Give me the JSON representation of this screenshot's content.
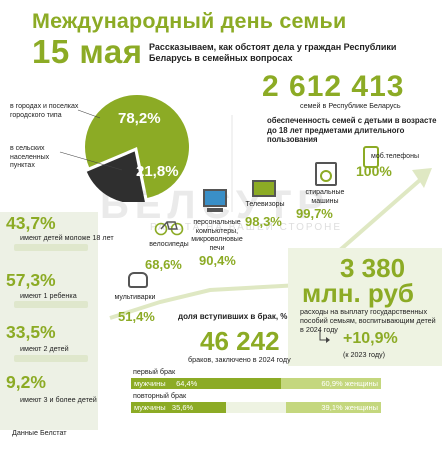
{
  "header": {
    "title": "Международный день семьи",
    "date": "15 мая",
    "subtitle": "Рассказываем, как обстоят дела у граждан Республики Беларусь в семейных вопросах"
  },
  "families": {
    "count": "2 612 413",
    "caption": "семей в Республике Беларусь"
  },
  "pie": {
    "urban_pct": "78,2%",
    "urban_label": "в городах и поселках городского типа",
    "rural_pct": "21,8%",
    "rural_label": "в сельских населенных пунктах",
    "urban_value": 78.2,
    "rural_value": 21.8
  },
  "watermark": {
    "text": "БЕЛСУТР",
    "sub": "РАБОТА НА ВАШЕЙ СТОРОНЕ"
  },
  "goods": {
    "heading": "обеспеченность семей с детьми в возрасте до 18 лет предметами длительного пользования",
    "items": [
      {
        "label": "моб.телефоны",
        "pct": "100%"
      },
      {
        "label": "стиральные машины",
        "pct": "99,7%"
      },
      {
        "label": "Телевизоры",
        "pct": "98,3%"
      },
      {
        "label": "персональные компьютеры, микроволновые печи",
        "pct": "90,4%"
      },
      {
        "label": "велосипеды",
        "pct": "68,6%"
      },
      {
        "label": "мультиварки",
        "pct": "51,4%"
      }
    ]
  },
  "children": [
    {
      "pct": "43,7%",
      "label": "имеют детей моложе 18 лет",
      "value": 43.7
    },
    {
      "pct": "57,3%",
      "label": "имеют 1 ребенка",
      "value": 57.3
    },
    {
      "pct": "33,5%",
      "label": "имеют 2 детей",
      "value": 33.5
    },
    {
      "pct": "9,2%",
      "label": "имеют 3 и более детей",
      "value": 9.2
    }
  ],
  "money": {
    "amount_line1": "3 380",
    "amount_line2": "млн. руб",
    "caption": "расходы на выплату государственных пособий семьям, воспитывающим детей в 2024 году",
    "growth": "+10,9%",
    "growth_caption": "(к 2023 году)"
  },
  "marriages": {
    "heading": "доля вступивших в брак, %",
    "count": "46 242",
    "caption": "браков, заключено в 2024 году",
    "rows": [
      {
        "label": "первый брак",
        "men_label": "мужчины",
        "men_pct": "64,4%",
        "women_label": "женщины",
        "women_pct": "60,9%",
        "men_value": 64.4,
        "women_value": 60.9
      },
      {
        "label": "повторный брак",
        "men_label": "мужчины",
        "men_pct": "35,6%",
        "women_label": "женщины",
        "women_pct": "39,1%",
        "men_value": 35.6,
        "women_value": 39.1
      }
    ]
  },
  "source": "Данные Белстат",
  "colors": {
    "accent": "#8cab25",
    "dark": "#2f2f2f",
    "light_accent": "#c4d77e"
  }
}
